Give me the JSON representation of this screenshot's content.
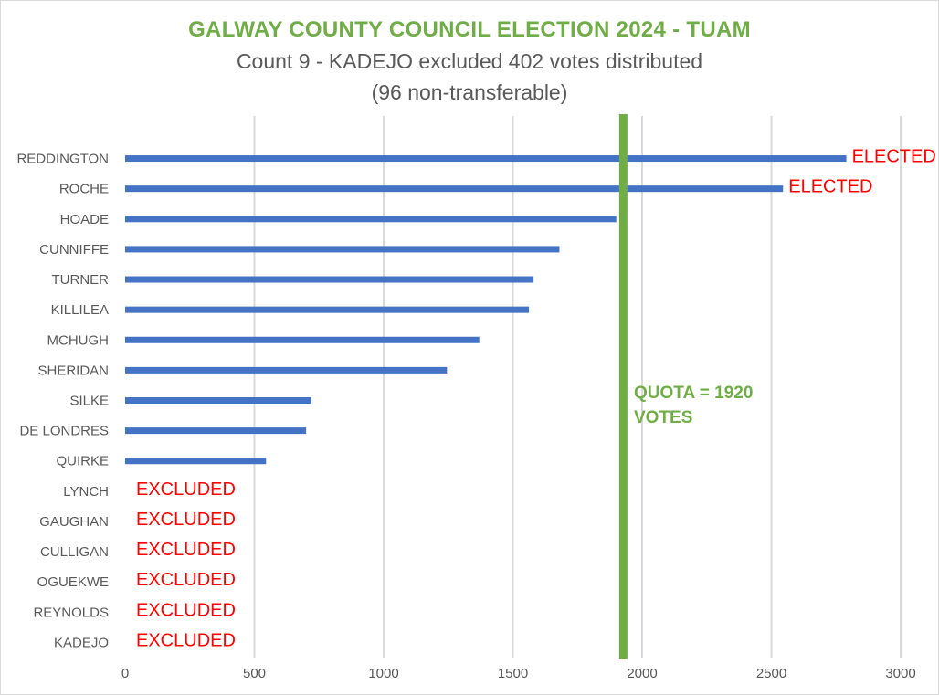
{
  "colors": {
    "bar": "#4472c4",
    "quota_line": "#70ad47",
    "title": "#70ad47",
    "subtitle": "#595959",
    "status": "#ff0000",
    "axis_text": "#595959",
    "grid": "#d9d9d9"
  },
  "chart_data": {
    "type": "bar",
    "orientation": "horizontal",
    "title": "GALWAY COUNTY COUNCIL ELECTION 2024 - TUAM",
    "subtitle": [
      "Count 9 - KADEJO excluded 402 votes distributed",
      "(96 non-transferable)"
    ],
    "categories": [
      "REDDINGTON",
      "ROCHE",
      "HOADE",
      "CUNNIFFE",
      "TURNER",
      "KILLILEA",
      "MCHUGH",
      "SHERIDAN",
      "SILKE",
      "DE LONDRES",
      "QUIRKE",
      "LYNCH",
      "GAUGHAN",
      "CULLIGAN",
      "OGUEKWE",
      "REYNOLDS",
      "KADEJO"
    ],
    "values": [
      2790,
      2545,
      1900,
      1680,
      1580,
      1562,
      1370,
      1245,
      720,
      700,
      545,
      0,
      0,
      0,
      0,
      0,
      0
    ],
    "status_labels": [
      "ELECTED",
      "ELECTED",
      "",
      "",
      "",
      "",
      "",
      "",
      "",
      "",
      "",
      "EXCLUDED",
      "EXCLUDED",
      "EXCLUDED",
      "EXCLUDED",
      "EXCLUDED",
      "EXCLUDED"
    ],
    "xlim": [
      0,
      3000
    ],
    "xticks": [
      "0",
      "500",
      "1000",
      "1500",
      "2000",
      "2500",
      "3000"
    ],
    "grid": true,
    "quota": {
      "value": 1920,
      "label_lines": [
        "QUOTA = 1920",
        "VOTES"
      ]
    }
  }
}
